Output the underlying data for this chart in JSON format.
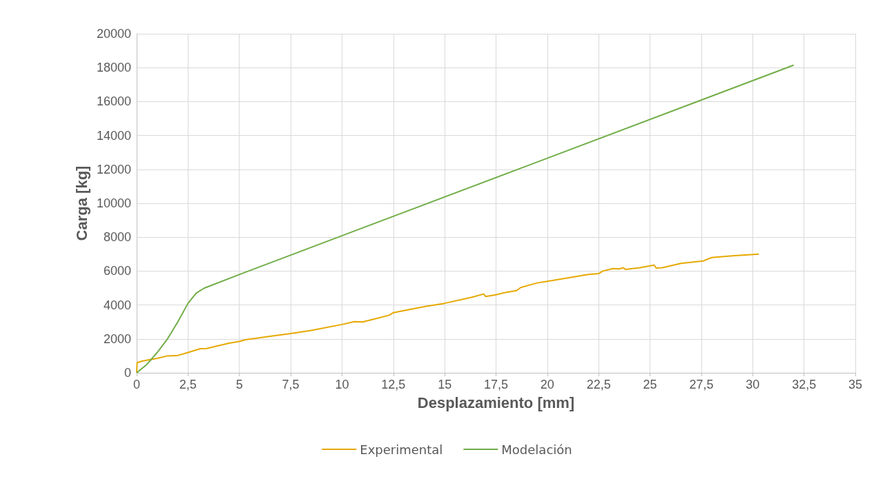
{
  "chart_data": {
    "type": "line",
    "xlabel": "Desplazamiento [mm]",
    "ylabel": "Carga [kg]",
    "xlim": [
      0,
      35
    ],
    "xticks": [
      0,
      {
        "value": 2.5,
        "label": "2,5"
      },
      5,
      {
        "value": 7.5,
        "label": "7,5"
      },
      10,
      {
        "value": 12.5,
        "label": "12,5"
      },
      15,
      {
        "value": 17.5,
        "label": "17,5"
      },
      20,
      {
        "value": 22.5,
        "label": "22,5"
      },
      25,
      {
        "value": 27.5,
        "label": "27,5"
      },
      30,
      {
        "value": 32.5,
        "label": "32,5"
      },
      35
    ],
    "ylim": [
      0,
      20000
    ],
    "yticks": [
      0,
      2000,
      4000,
      6000,
      8000,
      10000,
      12000,
      14000,
      16000,
      18000,
      20000
    ],
    "grid": true,
    "legend": "bottom",
    "marker": "none",
    "line_style": "solid",
    "series": [
      {
        "name": "Experimental",
        "color": "#e6a800",
        "x": [
          0,
          0.02,
          0.3,
          1,
          1.5,
          2,
          2.5,
          3.1,
          3.4,
          4.5,
          5,
          5.3,
          6.5,
          7.5,
          8.5,
          10,
          10.6,
          11,
          11.5,
          12.3,
          12.5,
          14,
          15,
          16.3,
          16.9,
          17,
          17.5,
          18,
          18.5,
          18.7,
          19.5,
          20,
          21,
          22,
          22.5,
          22.7,
          23.2,
          23.5,
          23.7,
          23.8,
          24.5,
          25.2,
          25.3,
          25.6,
          26.5,
          27.6,
          28,
          29,
          30.3
        ],
        "values": [
          0,
          600,
          700,
          850,
          1000,
          1020,
          1200,
          1420,
          1430,
          1750,
          1850,
          1950,
          2150,
          2320,
          2500,
          2850,
          3020,
          3000,
          3150,
          3400,
          3550,
          3900,
          4100,
          4450,
          4650,
          4500,
          4600,
          4750,
          4850,
          5030,
          5300,
          5400,
          5600,
          5800,
          5850,
          6000,
          6150,
          6130,
          6200,
          6100,
          6200,
          6350,
          6180,
          6200,
          6450,
          6600,
          6800,
          6900,
          7000
        ]
      },
      {
        "name": "Modelación",
        "color": "#70ad47",
        "x": [
          0,
          0.5,
          1,
          1.5,
          2,
          2.5,
          2.9,
          3.3,
          5,
          32
        ],
        "values": [
          0,
          500,
          1200,
          2000,
          3000,
          4100,
          4700,
          5000,
          5800,
          18150
        ]
      }
    ]
  }
}
